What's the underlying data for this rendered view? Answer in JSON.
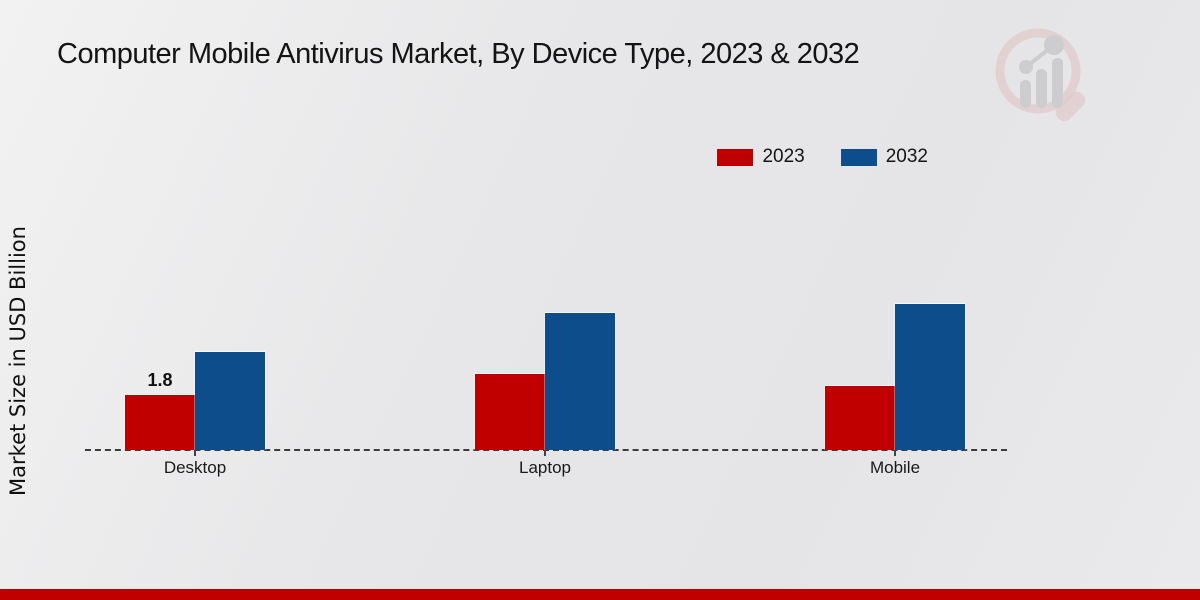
{
  "title": "Computer Mobile Antivirus Market, By Device Type, 2023 & 2032",
  "chart_data": {
    "type": "bar",
    "categories": [
      "Desktop",
      "Laptop",
      "Mobile"
    ],
    "series": [
      {
        "name": "2023",
        "color": "#c00000",
        "values": [
          1.8,
          2.5,
          2.1
        ]
      },
      {
        "name": "2032",
        "color": "#0d4d8c",
        "values": [
          3.2,
          4.5,
          4.8
        ]
      }
    ],
    "title": "Computer Mobile Antivirus Market, By Device Type, 2023 & 2032",
    "xlabel": "",
    "ylabel": "Market Size in USD Billion",
    "ylim": [
      0,
      5.5
    ],
    "grid": false,
    "legend_position": "top-right",
    "baseline_style": "dashed",
    "annotations": [
      {
        "series": "2023",
        "category": "Desktop",
        "text": "1.8"
      }
    ]
  },
  "branding": {
    "watermark_icon": "magnifier-bar-chart-logo",
    "footer_color": "#c00000",
    "watermark_ring_color": "#dfc6c6",
    "watermark_bar_color": "#c9c9cc"
  }
}
